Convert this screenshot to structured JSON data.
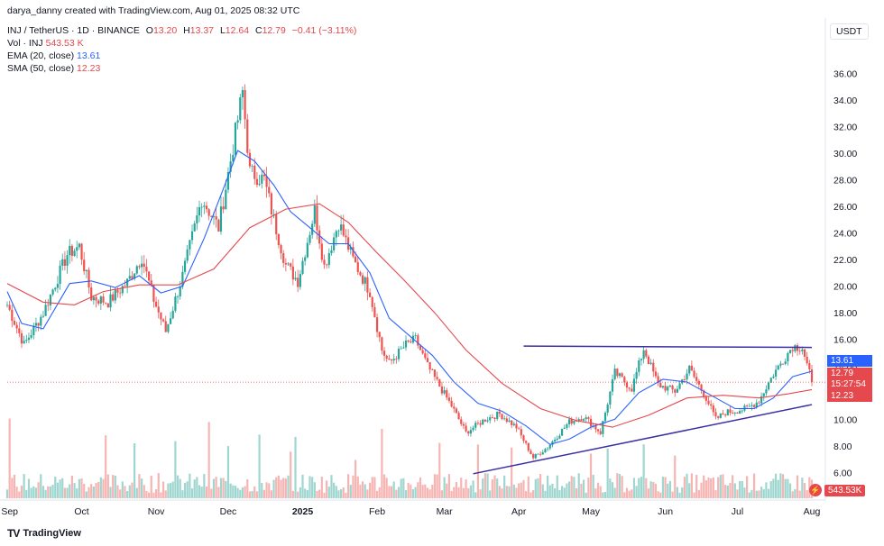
{
  "header": {
    "creator_line": "darya_danny created with TradingView.com, Aug 01, 2025 08:32 UTC",
    "symbol": "INJ / TetherUS · 1D · BINANCE",
    "open_label": "O",
    "open": "13.20",
    "high_label": "H",
    "high": "13.37",
    "low_label": "L",
    "low": "12.64",
    "close_label": "C",
    "close": "12.79",
    "change": "−0.41 (−3.11%)",
    "vol_label": "Vol · INJ",
    "vol_value": "543.53 K",
    "ema_label": "EMA (20, close)",
    "ema_value": "13.61",
    "sma_label": "SMA (50, close)",
    "sma_value": "12.23"
  },
  "unit": "USDT",
  "badges": {
    "ema": "13.61",
    "close": "12.79",
    "countdown": "15:27:54",
    "sma": "12.23",
    "volume": "543.53K"
  },
  "footer": {
    "brand": "TradingView",
    "logo": "TV"
  },
  "colors": {
    "up": "#26a69a",
    "down": "#ef5350",
    "ema": "#2962ff",
    "sma": "#e5484d",
    "trendline": "#3a2fa3"
  },
  "chart_data": {
    "type": "candlestick",
    "title": "INJ / TetherUS · 1D · BINANCE",
    "y_axis_ticks": [
      6,
      8,
      10,
      12,
      14,
      16,
      18,
      20,
      22,
      24,
      26,
      28,
      30,
      32,
      34,
      36
    ],
    "y_tick_labels": [
      "6.00",
      "8.00",
      "10.00",
      "12.00",
      "14.00",
      "16.00",
      "18.00",
      "20.00",
      "22.00",
      "24.00",
      "26.00",
      "28.00",
      "30.00",
      "32.00",
      "34.00",
      "36.00"
    ],
    "ylim": [
      4.6,
      38.0
    ],
    "x_tick_labels": [
      "Sep",
      "Oct",
      "Nov",
      "Dec",
      "2025",
      "Feb",
      "Mar",
      "Apr",
      "May",
      "Jun",
      "Jul",
      "Aug"
    ],
    "x_tick_dates": [
      "2024-09-01",
      "2024-10-01",
      "2024-11-01",
      "2024-12-01",
      "2025-01-01",
      "2025-02-01",
      "2025-03-01",
      "2025-04-01",
      "2025-05-01",
      "2025-06-01",
      "2025-07-01",
      "2025-08-01"
    ],
    "price_path": [
      [
        "2024-08-31",
        18.6
      ],
      [
        "2024-09-07",
        15.6
      ],
      [
        "2024-09-15",
        18.0
      ],
      [
        "2024-09-25",
        22.4
      ],
      [
        "2024-09-30",
        23.0
      ],
      [
        "2024-10-05",
        19.2
      ],
      [
        "2024-10-12",
        18.8
      ],
      [
        "2024-10-20",
        20.3
      ],
      [
        "2024-10-26",
        22.2
      ],
      [
        "2024-10-31",
        19.0
      ],
      [
        "2024-11-05",
        16.6
      ],
      [
        "2024-11-12",
        20.8
      ],
      [
        "2024-11-20",
        26.6
      ],
      [
        "2024-11-27",
        24.4
      ],
      [
        "2024-12-03",
        30.5
      ],
      [
        "2024-12-07",
        34.6
      ],
      [
        "2024-12-10",
        28.6
      ],
      [
        "2024-12-16",
        28.0
      ],
      [
        "2024-12-20",
        25.0
      ],
      [
        "2024-12-25",
        21.6
      ],
      [
        "2024-12-30",
        20.4
      ],
      [
        "2025-01-06",
        25.7
      ],
      [
        "2025-01-10",
        21.5
      ],
      [
        "2025-01-16",
        24.8
      ],
      [
        "2025-01-22",
        22.0
      ],
      [
        "2025-01-29",
        19.6
      ],
      [
        "2025-02-03",
        15.2
      ],
      [
        "2025-02-06",
        14.2
      ],
      [
        "2025-02-13",
        15.6
      ],
      [
        "2025-02-17",
        16.0
      ],
      [
        "2025-02-22",
        14.0
      ],
      [
        "2025-03-04",
        11.0
      ],
      [
        "2025-03-10",
        9.0
      ],
      [
        "2025-03-18",
        10.0
      ],
      [
        "2025-03-24",
        10.4
      ],
      [
        "2025-03-31",
        9.4
      ],
      [
        "2025-04-07",
        7.1
      ],
      [
        "2025-04-13",
        7.9
      ],
      [
        "2025-04-22",
        9.8
      ],
      [
        "2025-04-28",
        10.2
      ],
      [
        "2025-05-05",
        9.0
      ],
      [
        "2025-05-11",
        13.5
      ],
      [
        "2025-05-18",
        12.3
      ],
      [
        "2025-05-23",
        15.3
      ],
      [
        "2025-05-29",
        12.6
      ],
      [
        "2025-06-05",
        12.1
      ],
      [
        "2025-06-11",
        13.8
      ],
      [
        "2025-06-18",
        11.6
      ],
      [
        "2025-06-22",
        10.0
      ],
      [
        "2025-06-26",
        10.5
      ],
      [
        "2025-07-05",
        10.8
      ],
      [
        "2025-07-10",
        11.4
      ],
      [
        "2025-07-16",
        13.4
      ],
      [
        "2025-07-24",
        15.5
      ],
      [
        "2025-07-28",
        15.4
      ],
      [
        "2025-08-01",
        12.79
      ]
    ],
    "series": [
      {
        "name": "EMA (20, close)",
        "last": 13.61,
        "values": [
          [
            "2024-08-31",
            19.6
          ],
          [
            "2024-09-06",
            17.2
          ],
          [
            "2024-09-15",
            16.8
          ],
          [
            "2024-09-26",
            20.2
          ],
          [
            "2024-10-05",
            20.4
          ],
          [
            "2024-10-15",
            19.9
          ],
          [
            "2024-10-25",
            20.8
          ],
          [
            "2024-11-03",
            19.5
          ],
          [
            "2024-11-12",
            20.0
          ],
          [
            "2024-11-21",
            23.6
          ],
          [
            "2024-11-30",
            27.8
          ],
          [
            "2024-12-05",
            30.2
          ],
          [
            "2024-12-12",
            29.4
          ],
          [
            "2024-12-20",
            27.6
          ],
          [
            "2024-12-27",
            25.6
          ],
          [
            "2025-01-04",
            24.4
          ],
          [
            "2025-01-12",
            23.2
          ],
          [
            "2025-01-20",
            23.2
          ],
          [
            "2025-01-29",
            21.0
          ],
          [
            "2025-02-06",
            17.6
          ],
          [
            "2025-02-15",
            16.2
          ],
          [
            "2025-02-24",
            14.8
          ],
          [
            "2025-03-05",
            12.8
          ],
          [
            "2025-03-15",
            11.2
          ],
          [
            "2025-03-25",
            10.6
          ],
          [
            "2025-04-04",
            9.5
          ],
          [
            "2025-04-14",
            8.1
          ],
          [
            "2025-04-22",
            8.5
          ],
          [
            "2025-05-01",
            9.4
          ],
          [
            "2025-05-11",
            10.0
          ],
          [
            "2025-05-21",
            12.0
          ],
          [
            "2025-05-31",
            13.0
          ],
          [
            "2025-06-10",
            12.8
          ],
          [
            "2025-06-20",
            11.8
          ],
          [
            "2025-06-30",
            10.8
          ],
          [
            "2025-07-08",
            10.8
          ],
          [
            "2025-07-16",
            11.6
          ],
          [
            "2025-07-24",
            13.2
          ],
          [
            "2025-08-01",
            13.61
          ]
        ]
      },
      {
        "name": "SMA (50, close)",
        "last": 12.23,
        "values": [
          [
            "2024-08-31",
            20.2
          ],
          [
            "2024-09-15",
            18.8
          ],
          [
            "2024-09-28",
            18.6
          ],
          [
            "2024-10-10",
            19.6
          ],
          [
            "2024-10-25",
            20.1
          ],
          [
            "2024-11-10",
            20.1
          ],
          [
            "2024-11-25",
            21.3
          ],
          [
            "2024-12-10",
            24.4
          ],
          [
            "2024-12-25",
            25.8
          ],
          [
            "2025-01-08",
            26.2
          ],
          [
            "2025-01-20",
            24.8
          ],
          [
            "2025-02-01",
            22.5
          ],
          [
            "2025-02-12",
            20.5
          ],
          [
            "2025-02-25",
            18.0
          ],
          [
            "2025-03-10",
            15.2
          ],
          [
            "2025-03-25",
            12.7
          ],
          [
            "2025-04-10",
            10.8
          ],
          [
            "2025-04-25",
            9.9
          ],
          [
            "2025-05-10",
            9.4
          ],
          [
            "2025-05-25",
            10.3
          ],
          [
            "2025-06-10",
            11.6
          ],
          [
            "2025-06-25",
            11.8
          ],
          [
            "2025-07-10",
            11.6
          ],
          [
            "2025-07-22",
            11.9
          ],
          [
            "2025-08-01",
            12.23
          ]
        ]
      }
    ],
    "trendlines": [
      {
        "name": "resistance",
        "from": [
          "2025-04-03",
          15.5
        ],
        "to": [
          "2025-08-01",
          15.4
        ]
      },
      {
        "name": "ascending-support",
        "from": [
          "2025-03-13",
          5.9
        ],
        "to": [
          "2025-08-01",
          11.1
        ]
      }
    ],
    "last_close": 12.79,
    "volume_series": {
      "name": "Vol · INJ",
      "last": "543.53K"
    },
    "legend": "top-left",
    "grid": false
  }
}
